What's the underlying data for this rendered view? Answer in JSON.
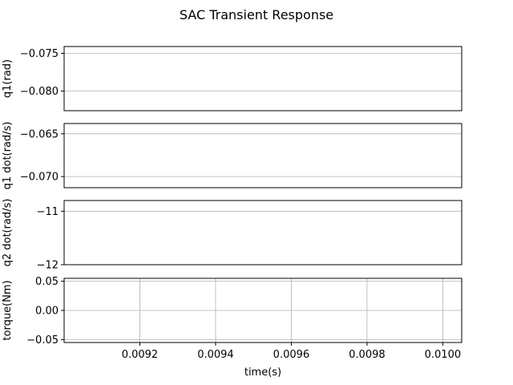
{
  "figure": {
    "title": "SAC Transient Response"
  },
  "chart_data": [
    {
      "type": "line",
      "ylabel": "q1(rad)",
      "yticks": [
        -0.075,
        -0.08
      ],
      "ytick_labels": [
        "−0.075",
        "−0.080"
      ],
      "ylim": [
        -0.0826,
        -0.0741
      ],
      "xlim": [
        0.009,
        0.01005
      ],
      "grid": "y",
      "series": []
    },
    {
      "type": "line",
      "ylabel": "q1 dot(rad/s)",
      "yticks": [
        -0.065,
        -0.07
      ],
      "ytick_labels": [
        "−0.065",
        "−0.070"
      ],
      "ylim": [
        -0.0713,
        -0.0638
      ],
      "xlim": [
        0.009,
        0.01005
      ],
      "grid": "y",
      "series": []
    },
    {
      "type": "line",
      "ylabel": "q2 dot(rad/s)",
      "yticks": [
        -11,
        -12
      ],
      "ytick_labels": [
        "−11",
        "−12"
      ],
      "ylim": [
        -12.0,
        -10.8
      ],
      "xlim": [
        0.009,
        0.01005
      ],
      "grid": "y",
      "series": []
    },
    {
      "type": "line",
      "ylabel": "torque(Nm)",
      "xlabel": "time(s)",
      "yticks": [
        0.05,
        0.0,
        -0.05
      ],
      "ytick_labels": [
        "0.05",
        "0.00",
        "−0.05"
      ],
      "ylim": [
        -0.055,
        0.055
      ],
      "xticks": [
        0.0092,
        0.0094,
        0.0096,
        0.0098,
        0.01
      ],
      "xtick_labels": [
        "0.0092",
        "0.0094",
        "0.0096",
        "0.0098",
        "0.0100"
      ],
      "xlim": [
        0.009,
        0.01005
      ],
      "grid": "both",
      "series": []
    }
  ]
}
